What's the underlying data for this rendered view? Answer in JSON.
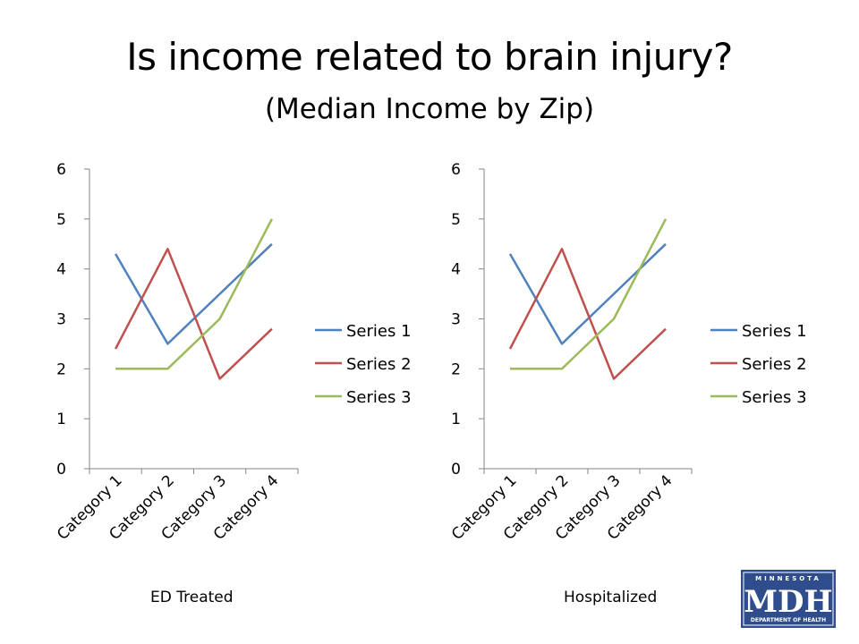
{
  "page": {
    "title": "Is income related to brain injury?",
    "subtitle": "(Median Income by Zip)"
  },
  "chart_data": [
    {
      "type": "line",
      "caption": "ED Treated",
      "categories": [
        "Category 1",
        "Category 2",
        "Category 3",
        "Category 4"
      ],
      "y_ticks": [
        "0",
        "1",
        "2",
        "3",
        "4",
        "5",
        "6"
      ],
      "ylim": [
        0,
        6
      ],
      "grid": false,
      "legend_position": "right",
      "series": [
        {
          "name": "Series 1",
          "color": "#4F81BD",
          "values": [
            4.3,
            2.5,
            3.5,
            4.5
          ]
        },
        {
          "name": "Series 2",
          "color": "#C0504D",
          "values": [
            2.4,
            4.4,
            1.8,
            2.8
          ]
        },
        {
          "name": "Series 3",
          "color": "#9BBB59",
          "values": [
            2,
            2,
            3,
            5
          ]
        }
      ]
    },
    {
      "type": "line",
      "caption": "Hospitalized",
      "categories": [
        "Category 1",
        "Category 2",
        "Category 3",
        "Category 4"
      ],
      "y_ticks": [
        "0",
        "1",
        "2",
        "3",
        "4",
        "5",
        "6"
      ],
      "ylim": [
        0,
        6
      ],
      "grid": false,
      "legend_position": "right",
      "series": [
        {
          "name": "Series 1",
          "color": "#4F81BD",
          "values": [
            4.3,
            2.5,
            3.5,
            4.5
          ]
        },
        {
          "name": "Series 2",
          "color": "#C0504D",
          "values": [
            2.4,
            4.4,
            1.8,
            2.8
          ]
        },
        {
          "name": "Series 3",
          "color": "#9BBB59",
          "values": [
            2,
            2,
            3,
            5
          ]
        }
      ]
    }
  ],
  "logo": {
    "top_text": "MINNESOTA",
    "main_text": "MDH",
    "bottom_text": "DEPARTMENT OF HEALTH",
    "color": "#2F4D8C"
  }
}
